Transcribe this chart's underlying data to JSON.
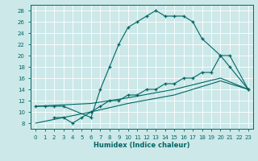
{
  "xlabel": "Humidex (Indice chaleur)",
  "bg_color": "#cce8e8",
  "grid_color": "#b0d0d0",
  "line_color": "#006666",
  "xlim": [
    -0.5,
    23.5
  ],
  "ylim": [
    7,
    29
  ],
  "xticks": [
    0,
    1,
    2,
    3,
    4,
    5,
    6,
    7,
    8,
    9,
    10,
    11,
    12,
    13,
    14,
    15,
    16,
    17,
    18,
    19,
    20,
    21,
    22,
    23
  ],
  "yticks": [
    8,
    10,
    12,
    14,
    16,
    18,
    20,
    22,
    24,
    26,
    28
  ],
  "curve1_x": [
    0,
    1,
    2,
    3,
    6,
    7,
    8,
    9,
    10,
    11,
    12,
    13,
    14,
    15,
    16,
    17,
    18,
    20,
    21,
    23
  ],
  "curve1_y": [
    11,
    11,
    11,
    11,
    9,
    14,
    18,
    22,
    25,
    26,
    27,
    28,
    27,
    27,
    27,
    26,
    23,
    20,
    18,
    14
  ],
  "curve2_x": [
    2,
    3,
    4,
    5,
    6,
    7,
    8,
    9,
    10,
    11,
    12,
    13,
    14,
    15,
    16,
    17,
    18,
    19,
    20,
    21,
    23
  ],
  "curve2_y": [
    9,
    9,
    8,
    9,
    10,
    11,
    12,
    12,
    13,
    13,
    14,
    14,
    15,
    15,
    16,
    16,
    17,
    17,
    20,
    20,
    14
  ],
  "curve3_x": [
    0,
    6,
    10,
    15,
    20,
    23
  ],
  "curve3_y": [
    11,
    11.5,
    12.5,
    14,
    16,
    14
  ],
  "curve4_x": [
    0,
    6,
    10,
    15,
    20,
    23
  ],
  "curve4_y": [
    8,
    10,
    11.5,
    13,
    15.5,
    14
  ]
}
